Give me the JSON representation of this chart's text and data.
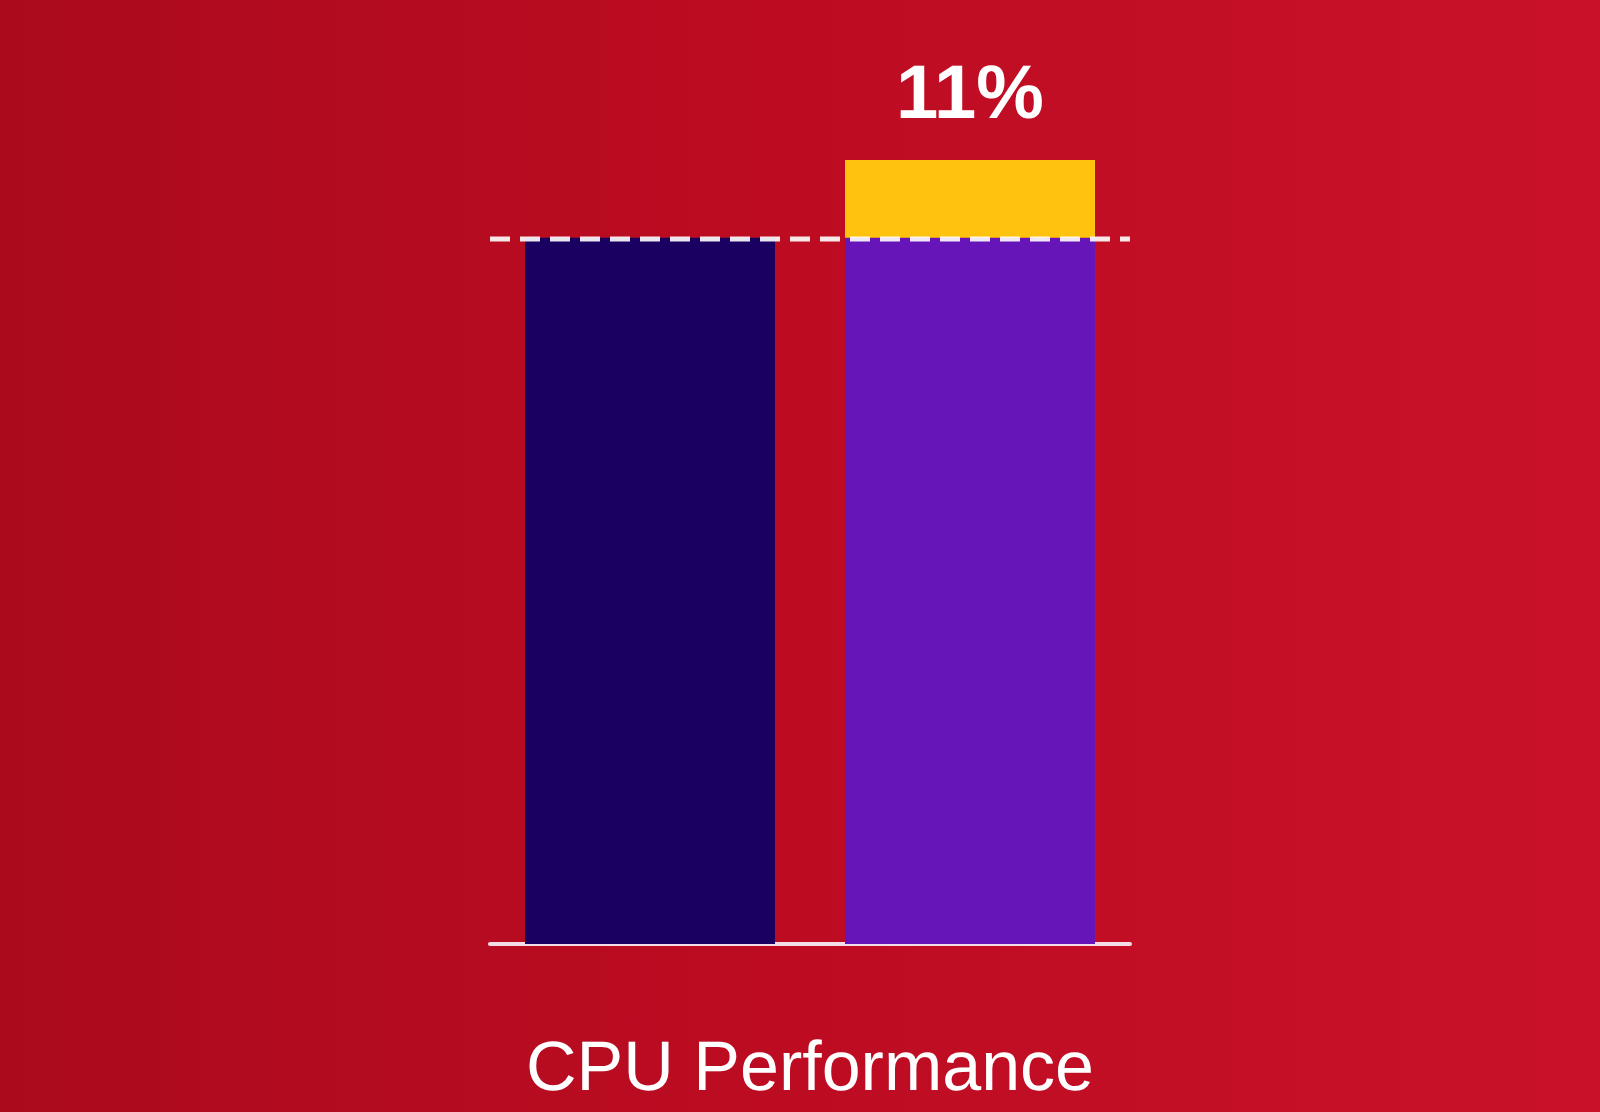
{
  "chart_data": {
    "type": "bar",
    "xlabel": "CPU Performance",
    "categories": [
      null,
      null
    ],
    "stacked": true,
    "ylim": [
      0,
      111
    ],
    "tick_labels": false,
    "series": [
      {
        "colors": [
          "#1a0060",
          "#6616b8"
        ],
        "values": [
          100,
          100
        ]
      },
      {
        "color": "#ffc20e",
        "values": [
          null,
          11
        ],
        "value_labels": [
          null,
          "11%"
        ]
      }
    ],
    "ref_lines": [
      {
        "axis": "y",
        "value": 100,
        "color": "#ffffff",
        "line_style": "dashed"
      }
    ]
  }
}
